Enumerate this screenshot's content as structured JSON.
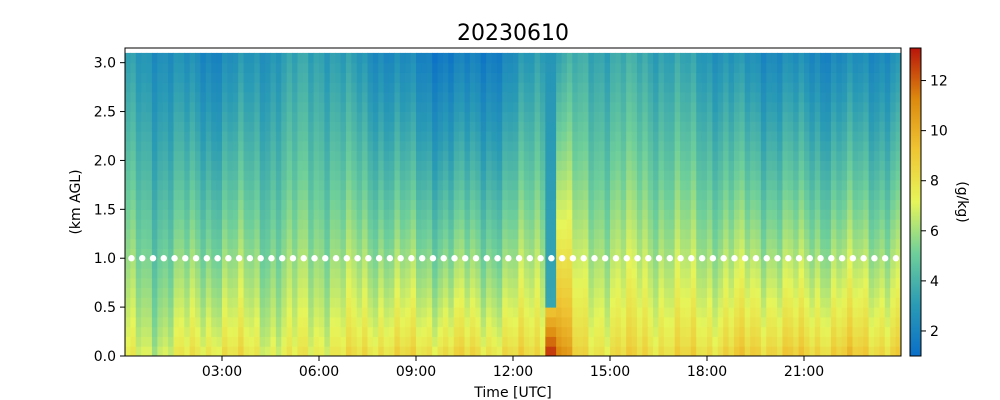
{
  "chart_data": {
    "type": "heatmap",
    "title": "20230610",
    "xlabel": "Time [UTC]",
    "ylabel": "(km AGL)",
    "colorbar_label": "(g/kg)",
    "xlim_hours": [
      0,
      24
    ],
    "ylim_km": [
      0.0,
      3.15
    ],
    "x_ticks": [
      {
        "hour": 3,
        "label": "03:00"
      },
      {
        "hour": 6,
        "label": "06:00"
      },
      {
        "hour": 9,
        "label": "09:00"
      },
      {
        "hour": 12,
        "label": "12:00"
      },
      {
        "hour": 15,
        "label": "15:00"
      },
      {
        "hour": 18,
        "label": "18:00"
      },
      {
        "hour": 21,
        "label": "21:00"
      }
    ],
    "y_ticks": [
      {
        "value": 0.0,
        "label": "0.0"
      },
      {
        "value": 0.5,
        "label": "0.5"
      },
      {
        "value": 1.0,
        "label": "1.0"
      },
      {
        "value": 1.5,
        "label": "1.5"
      },
      {
        "value": 2.0,
        "label": "2.0"
      },
      {
        "value": 2.5,
        "label": "2.5"
      },
      {
        "value": 3.0,
        "label": "3.0"
      }
    ],
    "colorbar": {
      "min": 1.0,
      "max": 13.3,
      "ticks": [
        {
          "value": 2,
          "label": "2"
        },
        {
          "value": 4,
          "label": "4"
        },
        {
          "value": 6,
          "label": "6"
        },
        {
          "value": 8,
          "label": "8"
        },
        {
          "value": 10,
          "label": "10"
        },
        {
          "value": 12,
          "label": "12"
        }
      ],
      "colors": [
        "#0a6fc8",
        "#2a9bb5",
        "#6fcf9a",
        "#e6f55a",
        "#efc634",
        "#dd8a0e",
        "#b8150b"
      ]
    },
    "heights_km": [
      0.05,
      0.15,
      0.25,
      0.35,
      0.45,
      0.55,
      0.65,
      0.75,
      0.85,
      0.95,
      1.05,
      1.15,
      1.25,
      1.35,
      1.45,
      1.55,
      1.65,
      1.75,
      1.85,
      1.95,
      2.05,
      2.15,
      2.25,
      2.35,
      2.45,
      2.55,
      2.65,
      2.75,
      2.85,
      2.95,
      3.05
    ],
    "surface_mixing_ratio_gkg": [
      {
        "hour": 0.0,
        "value": 7.0
      },
      {
        "hour": 1.0,
        "value": 6.8
      },
      {
        "hour": 2.0,
        "value": 7.5
      },
      {
        "hour": 3.0,
        "value": 8.0
      },
      {
        "hour": 4.0,
        "value": 7.5
      },
      {
        "hour": 5.0,
        "value": 7.2
      },
      {
        "hour": 6.0,
        "value": 7.6
      },
      {
        "hour": 7.0,
        "value": 7.8
      },
      {
        "hour": 8.0,
        "value": 8.3
      },
      {
        "hour": 9.0,
        "value": 8.0
      },
      {
        "hour": 10.0,
        "value": 8.2
      },
      {
        "hour": 11.0,
        "value": 8.1
      },
      {
        "hour": 12.0,
        "value": 8.0
      },
      {
        "hour": 13.0,
        "value": 8.5
      },
      {
        "hour": 13.2,
        "value": 13.0
      },
      {
        "hour": 14.0,
        "value": 8.2
      },
      {
        "hour": 15.0,
        "value": 8.1
      },
      {
        "hour": 16.0,
        "value": 8.4
      },
      {
        "hour": 17.0,
        "value": 8.2
      },
      {
        "hour": 18.0,
        "value": 8.3
      },
      {
        "hour": 19.0,
        "value": 8.6
      },
      {
        "hour": 20.0,
        "value": 8.8
      },
      {
        "hour": 21.0,
        "value": 8.5
      },
      {
        "hour": 22.0,
        "value": 8.8
      },
      {
        "hour": 23.0,
        "value": 8.7
      },
      {
        "hour": 24.0,
        "value": 8.5
      }
    ],
    "top_mixing_ratio_gkg": [
      {
        "hour": 0.0,
        "value": 3.0
      },
      {
        "hour": 2.6,
        "value": 2.2
      },
      {
        "hour": 6.0,
        "value": 3.5
      },
      {
        "hour": 7.6,
        "value": 2.6
      },
      {
        "hour": 10.0,
        "value": 1.6
      },
      {
        "hour": 11.8,
        "value": 2.0
      },
      {
        "hour": 13.0,
        "value": 3.6
      },
      {
        "hour": 16.0,
        "value": 3.6
      },
      {
        "hour": 19.5,
        "value": 2.5
      },
      {
        "hour": 22.0,
        "value": 2.2
      },
      {
        "hour": 24.0,
        "value": 2.6
      }
    ],
    "dry_column_event": {
      "hour": 13.2,
      "value_aloft_gkg": 2.8
    },
    "marker_line": {
      "height_km": 1.0,
      "color": "#ffffff",
      "interval_hours": 0.333
    }
  }
}
